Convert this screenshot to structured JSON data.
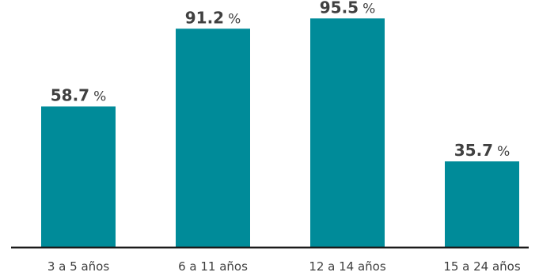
{
  "chart_data": {
    "type": "bar",
    "title": "",
    "xlabel": "",
    "ylabel": "",
    "categories": [
      "3 a 5 años",
      "6 a 11 años",
      "12 a 14 años",
      "15 a 24 años"
    ],
    "values": [
      58.7,
      91.2,
      95.5,
      35.7
    ],
    "value_labels": [
      "58.7",
      "91.2",
      "95.5",
      "35.7"
    ],
    "unit": "%",
    "ylim": [
      0,
      100
    ],
    "grid": false,
    "legend": "none",
    "bar_color": "#008b99"
  }
}
